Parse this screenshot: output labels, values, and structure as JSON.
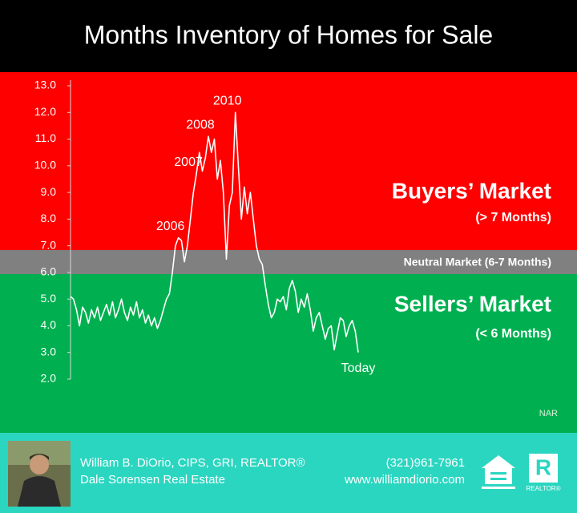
{
  "chart_data": {
    "type": "line",
    "title": "Months Inventory of Homes for Sale",
    "color": "#ffffff",
    "values": [
      5.1,
      5.0,
      4.6,
      4.0,
      4.7,
      4.5,
      4.1,
      4.6,
      4.3,
      4.7,
      4.2,
      4.5,
      4.8,
      4.4,
      4.9,
      4.3,
      4.6,
      5.0,
      4.5,
      4.2,
      4.7,
      4.4,
      4.9,
      4.3,
      4.6,
      4.1,
      4.4,
      4.0,
      4.3,
      3.9,
      4.2,
      4.6,
      5.0,
      5.2,
      6.0,
      7.0,
      7.3,
      7.2,
      6.4,
      7.0,
      8.0,
      9.0,
      9.7,
      10.5,
      9.8,
      10.3,
      11.1,
      10.5,
      11.0,
      9.5,
      10.2,
      9.0,
      6.5,
      8.5,
      9.0,
      12.0,
      10.0,
      8.0,
      9.2,
      8.2,
      9.0,
      8.0,
      7.0,
      6.5,
      6.3,
      5.5,
      4.8,
      4.3,
      4.5,
      5.0,
      4.9,
      5.1,
      4.6,
      5.4,
      5.7,
      5.3,
      4.5,
      5.0,
      4.7,
      5.2,
      4.6,
      3.8,
      4.3,
      4.5,
      4.0,
      3.5,
      3.9,
      4.0,
      3.1,
      3.7,
      4.3,
      4.2,
      3.6,
      4.0,
      4.2,
      3.8,
      3.0
    ],
    "ylim": [
      2,
      13
    ],
    "yticks": [
      {
        "value": 2,
        "label": "2.0"
      },
      {
        "value": 3,
        "label": "3.0"
      },
      {
        "value": 4,
        "label": "4.0"
      },
      {
        "value": 5,
        "label": "5.0"
      },
      {
        "value": 6,
        "label": "6.0"
      },
      {
        "value": 7,
        "label": "7.0"
      },
      {
        "value": 8,
        "label": "8.0"
      },
      {
        "value": 9,
        "label": "9.0"
      },
      {
        "value": 10,
        "label": "10.0"
      },
      {
        "value": 11,
        "label": "11.0"
      },
      {
        "value": 12,
        "label": "12.0"
      },
      {
        "value": 13,
        "label": "13.0"
      }
    ],
    "annotations": [
      {
        "text": "2006",
        "index": 36
      },
      {
        "text": "2007",
        "index": 42
      },
      {
        "text": "2008",
        "index": 46
      },
      {
        "text": "2010",
        "index": 55
      },
      {
        "text": "Today",
        "index": 96
      }
    ],
    "zones": {
      "buyers": "Buyers’ Market",
      "buyers_note": "(> 7 Months)",
      "neutral": "Neutral Market (6-7 Months)",
      "sellers": "Sellers’ Market",
      "sellers_note": "(< 6 Months)"
    },
    "source": "NAR"
  },
  "footer": {
    "name": "William B. DiOrio, CIPS, GRI, REALTOR®",
    "company": "Dale Sorensen Real Estate",
    "phone": "(321)961-7961",
    "website": "www.williamdiorio.com",
    "logo_text": "REALTOR®"
  }
}
